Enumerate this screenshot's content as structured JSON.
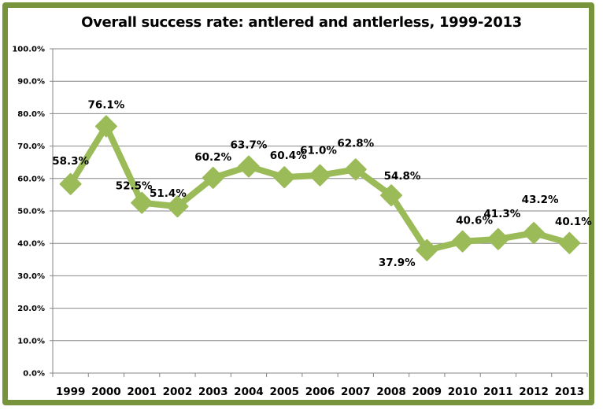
{
  "chart_data": {
    "type": "line",
    "title": "Overall success rate:  antlered and antlerless, 1999-2013",
    "xlabel": "",
    "ylabel": "",
    "categories": [
      "1999",
      "2000",
      "2001",
      "2002",
      "2003",
      "2004",
      "2005",
      "2006",
      "2007",
      "2008",
      "2009",
      "2010",
      "2011",
      "2012",
      "2013"
    ],
    "series": [
      {
        "name": "Overall success rate",
        "values": [
          58.3,
          76.1,
          52.5,
          51.4,
          60.2,
          63.7,
          60.4,
          61.0,
          62.8,
          54.8,
          37.9,
          40.6,
          41.3,
          43.2,
          40.1
        ],
        "labels": [
          "58.3%",
          "76.1%",
          "52.5%",
          "51.4%",
          "60.2%",
          "63.7%",
          "60.4%",
          "61.0%",
          "62.8%",
          "54.8%",
          "37.9%",
          "40.6%",
          "41.3%",
          "43.2%",
          "40.1%"
        ],
        "color": "#9bbb59",
        "marker": "diamond"
      }
    ],
    "ylim": [
      0,
      100
    ],
    "yticks": [
      0,
      10,
      20,
      30,
      40,
      50,
      60,
      70,
      80,
      90,
      100
    ],
    "ytick_labels": [
      "0.0%",
      "10.0%",
      "20.0%",
      "30.0%",
      "40.0%",
      "50.0%",
      "60.0%",
      "70.0%",
      "80.0%",
      "90.0%",
      "100.0%"
    ],
    "grid": true,
    "legend": "none",
    "frame_color": "#77933c",
    "gridline_color": "#868686"
  }
}
